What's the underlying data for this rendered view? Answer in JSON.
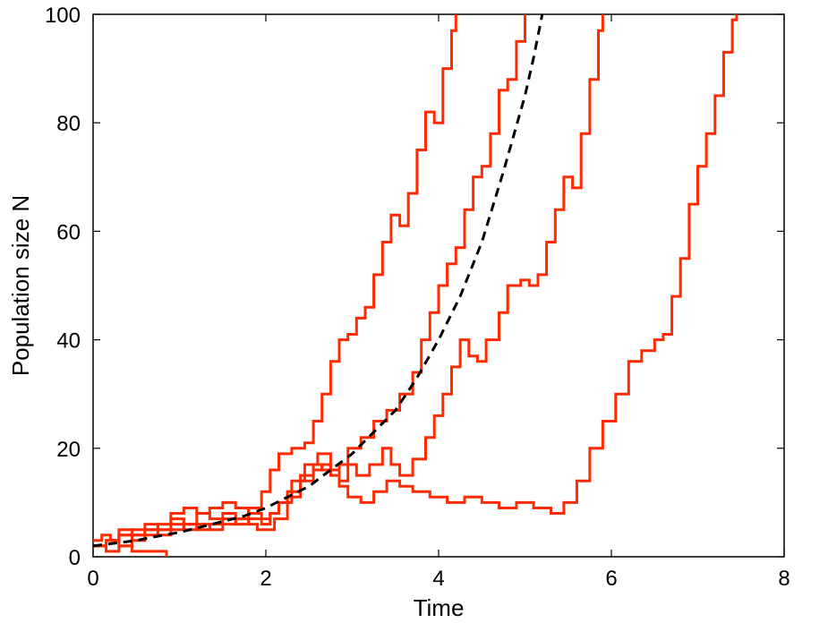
{
  "chart_data": {
    "type": "line",
    "xlabel": "Time",
    "ylabel": "Population size N",
    "xlim": [
      0,
      8
    ],
    "ylim": [
      0,
      100
    ],
    "xticks": [
      0,
      2,
      4,
      6,
      8
    ],
    "yticks": [
      0,
      20,
      40,
      60,
      80,
      100
    ],
    "grid": false,
    "colors": {
      "stochastic": "#ff2a00",
      "deterministic": "#000000"
    },
    "series": [
      {
        "style": "solid",
        "points": [
          [
            0.0,
            3
          ],
          [
            0.1,
            4
          ],
          [
            0.2,
            3
          ],
          [
            0.3,
            5
          ],
          [
            0.45,
            4
          ],
          [
            0.6,
            6
          ],
          [
            0.75,
            5
          ],
          [
            0.9,
            7
          ],
          [
            1.05,
            6
          ],
          [
            1.2,
            8
          ],
          [
            1.35,
            7
          ],
          [
            1.5,
            8
          ],
          [
            1.65,
            7
          ],
          [
            1.8,
            9
          ],
          [
            1.95,
            12
          ],
          [
            2.05,
            16
          ],
          [
            2.15,
            19
          ],
          [
            2.3,
            20
          ],
          [
            2.45,
            21
          ],
          [
            2.55,
            25
          ],
          [
            2.65,
            30
          ],
          [
            2.75,
            36
          ],
          [
            2.85,
            40
          ],
          [
            2.95,
            41
          ],
          [
            3.05,
            44
          ],
          [
            3.15,
            46
          ],
          [
            3.25,
            52
          ],
          [
            3.35,
            58
          ],
          [
            3.45,
            63
          ],
          [
            3.55,
            61
          ],
          [
            3.65,
            67
          ],
          [
            3.75,
            75
          ],
          [
            3.85,
            82
          ],
          [
            3.95,
            80
          ],
          [
            4.05,
            90
          ],
          [
            4.15,
            97
          ],
          [
            4.2,
            100
          ]
        ]
      },
      {
        "style": "solid",
        "points": [
          [
            0.0,
            2
          ],
          [
            0.15,
            3
          ],
          [
            0.3,
            4
          ],
          [
            0.45,
            3
          ],
          [
            0.6,
            5
          ],
          [
            0.75,
            6
          ],
          [
            0.9,
            8
          ],
          [
            1.05,
            9
          ],
          [
            1.2,
            8
          ],
          [
            1.35,
            9
          ],
          [
            1.5,
            10
          ],
          [
            1.65,
            9
          ],
          [
            1.8,
            8
          ],
          [
            1.95,
            7
          ],
          [
            2.05,
            8
          ],
          [
            2.15,
            10
          ],
          [
            2.3,
            14
          ],
          [
            2.45,
            17
          ],
          [
            2.6,
            19
          ],
          [
            2.75,
            16
          ],
          [
            2.85,
            17
          ],
          [
            2.95,
            20
          ],
          [
            3.1,
            22
          ],
          [
            3.25,
            25
          ],
          [
            3.4,
            27
          ],
          [
            3.55,
            30
          ],
          [
            3.7,
            34
          ],
          [
            3.8,
            40
          ],
          [
            3.9,
            45
          ],
          [
            4.0,
            50
          ],
          [
            4.1,
            54
          ],
          [
            4.2,
            57
          ],
          [
            4.3,
            64
          ],
          [
            4.4,
            70
          ],
          [
            4.5,
            72
          ],
          [
            4.6,
            78
          ],
          [
            4.7,
            86
          ],
          [
            4.8,
            88
          ],
          [
            4.9,
            95
          ],
          [
            5.0,
            100
          ]
        ]
      },
      {
        "style": "solid",
        "points": [
          [
            0.0,
            2
          ],
          [
            0.15,
            3
          ],
          [
            0.3,
            4
          ],
          [
            0.45,
            5
          ],
          [
            0.6,
            4
          ],
          [
            0.75,
            5
          ],
          [
            0.9,
            6
          ],
          [
            1.05,
            5
          ],
          [
            1.2,
            6
          ],
          [
            1.35,
            5
          ],
          [
            1.5,
            6
          ],
          [
            1.65,
            7
          ],
          [
            1.8,
            6
          ],
          [
            1.9,
            5
          ],
          [
            2.0,
            5
          ],
          [
            2.1,
            7
          ],
          [
            2.25,
            11
          ],
          [
            2.4,
            15
          ],
          [
            2.55,
            17
          ],
          [
            2.65,
            16
          ],
          [
            2.75,
            15
          ],
          [
            2.85,
            14
          ],
          [
            2.95,
            17
          ],
          [
            3.05,
            15
          ],
          [
            3.2,
            17
          ],
          [
            3.35,
            20
          ],
          [
            3.45,
            17
          ],
          [
            3.55,
            15
          ],
          [
            3.7,
            18
          ],
          [
            3.85,
            22
          ],
          [
            3.95,
            26
          ],
          [
            4.05,
            30
          ],
          [
            4.15,
            35
          ],
          [
            4.25,
            40
          ],
          [
            4.35,
            37
          ],
          [
            4.45,
            36
          ],
          [
            4.55,
            40
          ],
          [
            4.7,
            45
          ],
          [
            4.8,
            50
          ],
          [
            4.95,
            51
          ],
          [
            5.05,
            50
          ],
          [
            5.15,
            52
          ],
          [
            5.25,
            58
          ],
          [
            5.35,
            64
          ],
          [
            5.45,
            70
          ],
          [
            5.55,
            68
          ],
          [
            5.65,
            78
          ],
          [
            5.75,
            88
          ],
          [
            5.85,
            97
          ],
          [
            5.9,
            100
          ]
        ]
      },
      {
        "style": "solid",
        "points": [
          [
            0.0,
            2
          ],
          [
            0.15,
            3
          ],
          [
            0.3,
            2
          ],
          [
            0.45,
            4
          ],
          [
            0.6,
            5
          ],
          [
            0.75,
            4
          ],
          [
            0.9,
            5
          ],
          [
            1.05,
            6
          ],
          [
            1.2,
            5
          ],
          [
            1.35,
            6
          ],
          [
            1.5,
            7
          ],
          [
            1.65,
            6
          ],
          [
            1.8,
            7
          ],
          [
            1.95,
            6
          ],
          [
            2.05,
            8
          ],
          [
            2.15,
            10
          ],
          [
            2.25,
            12
          ],
          [
            2.4,
            14
          ],
          [
            2.55,
            16
          ],
          [
            2.65,
            17
          ],
          [
            2.75,
            16
          ],
          [
            2.85,
            13
          ],
          [
            2.95,
            11
          ],
          [
            3.1,
            10
          ],
          [
            3.25,
            12
          ],
          [
            3.4,
            14
          ],
          [
            3.55,
            13
          ],
          [
            3.7,
            12
          ],
          [
            3.9,
            11
          ],
          [
            4.1,
            10
          ],
          [
            4.3,
            11
          ],
          [
            4.5,
            10
          ],
          [
            4.7,
            9
          ],
          [
            4.9,
            10
          ],
          [
            5.1,
            9
          ],
          [
            5.3,
            8
          ],
          [
            5.45,
            10
          ],
          [
            5.6,
            14
          ],
          [
            5.75,
            20
          ],
          [
            5.9,
            25
          ],
          [
            6.05,
            30
          ],
          [
            6.2,
            36
          ],
          [
            6.35,
            38
          ],
          [
            6.5,
            40
          ],
          [
            6.6,
            41
          ],
          [
            6.7,
            48
          ],
          [
            6.8,
            55
          ],
          [
            6.9,
            65
          ],
          [
            7.0,
            72
          ],
          [
            7.1,
            78
          ],
          [
            7.2,
            85
          ],
          [
            7.3,
            93
          ],
          [
            7.4,
            99
          ],
          [
            7.45,
            100
          ]
        ]
      },
      {
        "style": "solid",
        "points": [
          [
            0.0,
            2
          ],
          [
            0.15,
            1
          ],
          [
            0.3,
            2
          ],
          [
            0.45,
            1
          ],
          [
            0.6,
            1
          ],
          [
            0.75,
            1
          ],
          [
            0.85,
            0
          ]
        ]
      },
      {
        "style": "dashed",
        "points": [
          [
            0.0,
            2
          ],
          [
            0.25,
            2.5
          ],
          [
            0.5,
            3
          ],
          [
            0.75,
            3.8
          ],
          [
            1.0,
            4.5
          ],
          [
            1.25,
            5.5
          ],
          [
            1.5,
            6.5
          ],
          [
            1.75,
            7.5
          ],
          [
            2.0,
            9
          ],
          [
            2.25,
            11
          ],
          [
            2.5,
            13
          ],
          [
            2.75,
            16
          ],
          [
            3.0,
            19
          ],
          [
            3.25,
            23
          ],
          [
            3.5,
            27
          ],
          [
            3.75,
            33
          ],
          [
            4.0,
            40
          ],
          [
            4.25,
            48
          ],
          [
            4.5,
            58
          ],
          [
            4.75,
            71
          ],
          [
            5.0,
            85
          ],
          [
            5.1,
            92
          ],
          [
            5.2,
            100
          ]
        ]
      }
    ]
  }
}
